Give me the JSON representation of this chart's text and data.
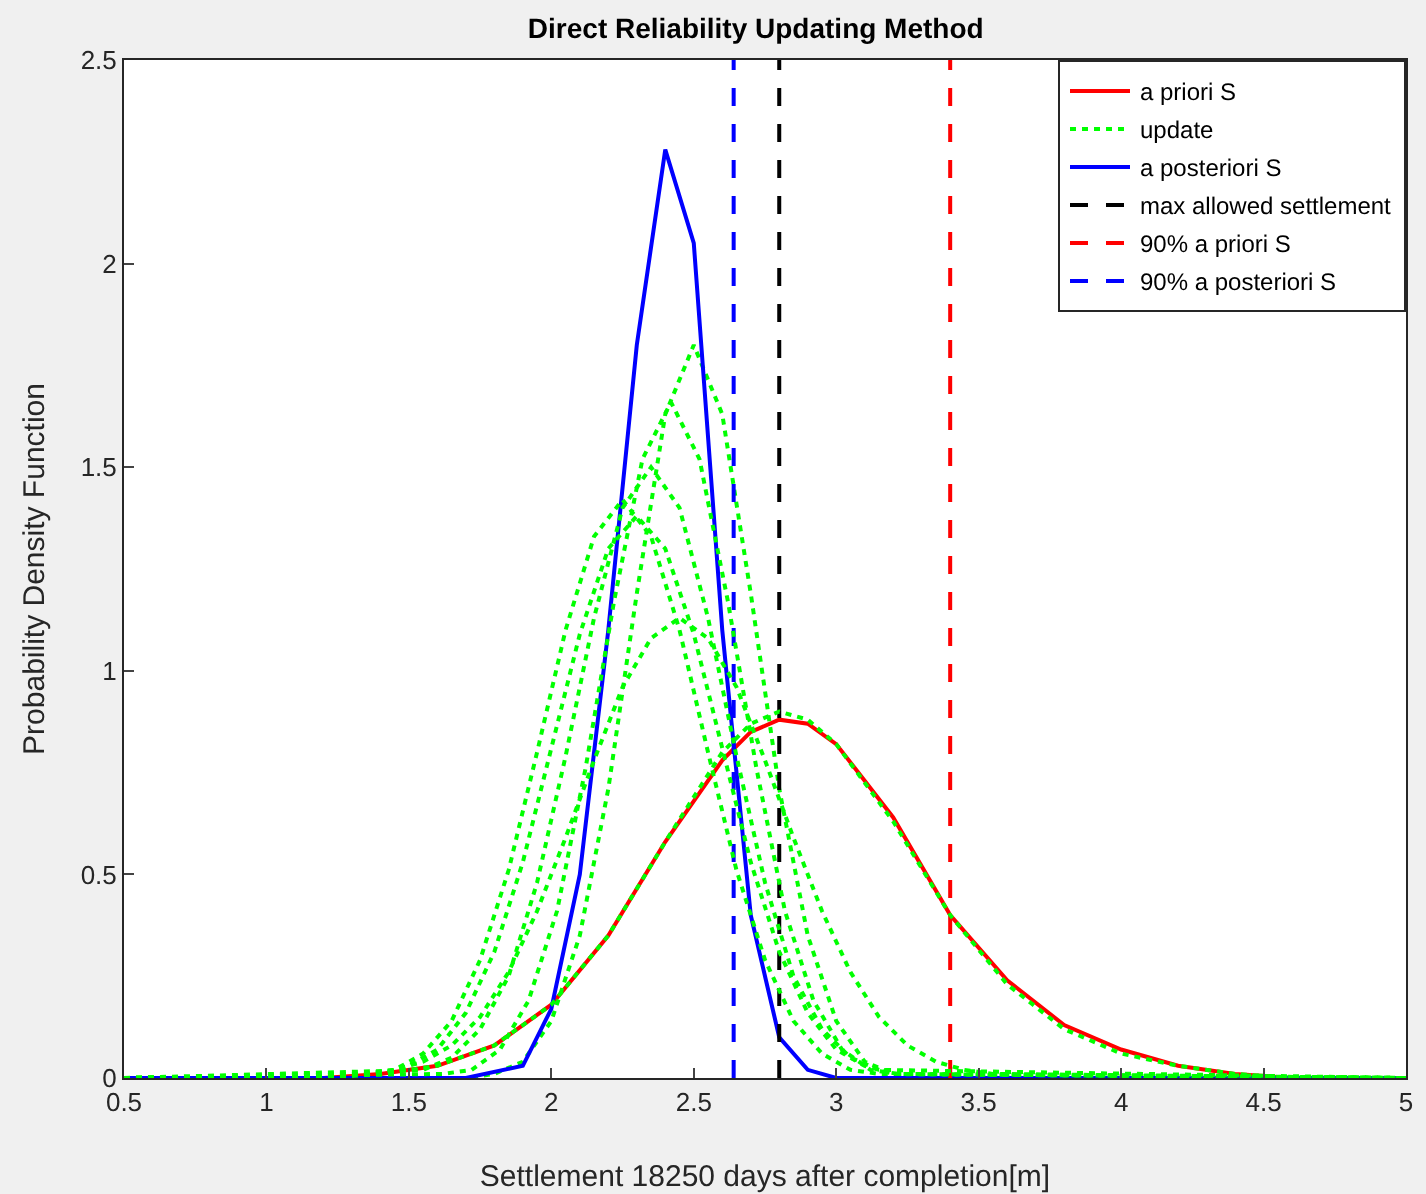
{
  "chart_data": {
    "type": "line",
    "title": "Direct Reliability Updating Method",
    "xlabel": "Settlement 18250 days after completion[m]",
    "ylabel": "Probability Density Function",
    "xlim": [
      0.5,
      5
    ],
    "ylim": [
      0,
      2.5
    ],
    "xticks": [
      0.5,
      1,
      1.5,
      2,
      2.5,
      3,
      3.5,
      4,
      4.5,
      5
    ],
    "yticks": [
      0,
      0.5,
      1,
      1.5,
      2,
      2.5
    ],
    "grid": false,
    "legend": "top right",
    "series": [
      {
        "name": "a priori S",
        "color": "#ff0000",
        "line_style": "solid",
        "x": [
          0.5,
          1.2,
          1.4,
          1.6,
          1.8,
          2.0,
          2.2,
          2.4,
          2.6,
          2.7,
          2.8,
          2.9,
          3.0,
          3.2,
          3.4,
          3.6,
          3.8,
          4.0,
          4.2,
          4.4,
          4.6,
          5
        ],
        "values": [
          0,
          0,
          0.01,
          0.03,
          0.08,
          0.18,
          0.35,
          0.58,
          0.78,
          0.85,
          0.88,
          0.87,
          0.82,
          0.64,
          0.4,
          0.24,
          0.13,
          0.07,
          0.03,
          0.01,
          0,
          0
        ]
      },
      {
        "name": "update",
        "color": "#00ff00",
        "line_style": "dotted",
        "x": [
          0.5,
          1.7,
          1.8,
          1.9,
          2.0,
          2.1,
          2.2,
          2.3,
          2.4,
          2.5,
          2.6,
          2.7,
          2.8,
          2.9,
          3.0,
          3.1,
          3.2,
          3.3,
          5
        ],
        "values": [
          0,
          0,
          0.01,
          0.04,
          0.14,
          0.35,
          0.71,
          1.19,
          1.63,
          1.8,
          1.63,
          1.19,
          0.71,
          0.35,
          0.14,
          0.04,
          0.01,
          0,
          0
        ]
      },
      {
        "name": "a posteriori S",
        "color": "#0000ff",
        "line_style": "solid",
        "x": [
          0.5,
          1.7,
          1.9,
          2.0,
          2.1,
          2.2,
          2.3,
          2.4,
          2.5,
          2.6,
          2.7,
          2.8,
          2.9,
          3.0,
          5
        ],
        "values": [
          0,
          0,
          0.03,
          0.17,
          0.5,
          1.1,
          1.8,
          2.28,
          2.05,
          1.1,
          0.4,
          0.1,
          0.02,
          0,
          0
        ]
      },
      {
        "name": "max allowed settlement",
        "color": "#000000",
        "line_style": "dashed",
        "x": [
          2.8,
          2.8
        ],
        "values": [
          0,
          2.5
        ]
      },
      {
        "name": "90% a priori S",
        "color": "#ff0000",
        "line_style": "dashed",
        "x": [
          3.4,
          3.4
        ],
        "values": [
          0,
          2.5
        ]
      },
      {
        "name": "90% a posteriori S",
        "color": "#0000ff",
        "line_style": "dashed",
        "x": [
          2.64,
          2.64
        ],
        "values": [
          0,
          2.5
        ]
      },
      {
        "color": "#00ff00",
        "line_style": "dotted",
        "x": [
          0.5,
          1.62,
          1.72,
          1.82,
          1.92,
          2.02,
          2.12,
          2.22,
          2.32,
          2.42,
          2.52,
          2.62,
          2.72,
          2.82,
          2.92,
          3.02,
          3.12,
          3.22,
          5
        ],
        "values": [
          0,
          0.01,
          0.02,
          0.07,
          0.19,
          0.41,
          0.76,
          1.17,
          1.52,
          1.66,
          1.52,
          1.17,
          0.76,
          0.41,
          0.19,
          0.07,
          0.02,
          0.01,
          0
        ]
      },
      {
        "color": "#00ff00",
        "line_style": "dotted",
        "x": [
          0.5,
          1.55,
          1.65,
          1.75,
          1.85,
          1.95,
          2.05,
          2.15,
          2.25,
          2.35,
          2.45,
          2.55,
          2.65,
          2.75,
          2.85,
          2.95,
          3.05,
          3.15,
          5
        ],
        "values": [
          0,
          0.02,
          0.05,
          0.12,
          0.25,
          0.48,
          0.79,
          1.13,
          1.4,
          1.5,
          1.4,
          1.13,
          0.79,
          0.48,
          0.25,
          0.12,
          0.05,
          0.02,
          0
        ]
      },
      {
        "color": "#00ff00",
        "line_style": "dotted",
        "x": [
          0.5,
          1.35,
          1.45,
          1.55,
          1.65,
          1.75,
          1.85,
          1.95,
          2.05,
          2.15,
          2.25,
          2.35,
          2.45,
          2.55,
          2.65,
          2.75,
          2.85,
          2.95,
          3.05,
          3.15,
          5
        ],
        "values": [
          0,
          0.01,
          0.02,
          0.06,
          0.14,
          0.29,
          0.51,
          0.8,
          1.1,
          1.33,
          1.42,
          1.33,
          1.1,
          0.8,
          0.51,
          0.29,
          0.14,
          0.06,
          0.02,
          0.01,
          0
        ]
      },
      {
        "color": "#00ff00",
        "line_style": "dotted",
        "x": [
          0.5,
          1.4,
          1.5,
          1.6,
          1.7,
          1.8,
          1.9,
          2.0,
          2.1,
          2.2,
          2.3,
          2.4,
          2.5,
          2.6,
          2.7,
          2.8,
          2.9,
          3.0,
          3.1,
          3.2,
          5
        ],
        "values": [
          0,
          0.01,
          0.03,
          0.07,
          0.16,
          0.31,
          0.53,
          0.81,
          1.09,
          1.3,
          1.38,
          1.3,
          1.09,
          0.81,
          0.53,
          0.31,
          0.16,
          0.07,
          0.03,
          0.01,
          0
        ]
      },
      {
        "color": "#00ff00",
        "line_style": "dotted",
        "x": [
          0.5,
          1.35,
          1.45,
          1.55,
          1.65,
          1.75,
          1.85,
          1.95,
          2.05,
          2.15,
          2.25,
          2.35,
          2.45,
          2.55,
          2.65,
          2.75,
          2.85,
          2.95,
          3.05,
          3.15,
          3.25,
          3.35,
          3.45,
          3.55,
          5
        ],
        "values": [
          0,
          0.01,
          0.02,
          0.04,
          0.08,
          0.15,
          0.26,
          0.41,
          0.59,
          0.78,
          0.96,
          1.08,
          1.13,
          1.08,
          0.96,
          0.78,
          0.59,
          0.41,
          0.26,
          0.15,
          0.08,
          0.04,
          0.02,
          0.01,
          0
        ]
      },
      {
        "color": "#00ff00",
        "line_style": "dotted",
        "x": [
          0.5,
          1.2,
          1.4,
          1.6,
          1.8,
          2.0,
          2.2,
          2.4,
          2.6,
          2.7,
          2.8,
          2.9,
          3.0,
          3.2,
          3.4,
          3.6,
          3.8,
          4.0,
          4.2,
          4.4,
          4.6,
          5
        ],
        "values": [
          0,
          0,
          0.01,
          0.03,
          0.08,
          0.18,
          0.35,
          0.58,
          0.8,
          0.87,
          0.9,
          0.88,
          0.82,
          0.63,
          0.4,
          0.23,
          0.12,
          0.06,
          0.03,
          0.01,
          0,
          0
        ]
      }
    ]
  }
}
